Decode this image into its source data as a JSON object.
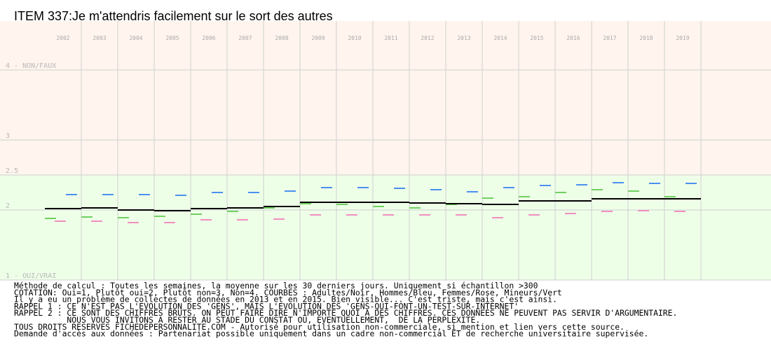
{
  "chart_data": {
    "type": "step-segments",
    "title": "ITEM 337:Je m'attendris facilement sur le sort des autres",
    "categories": [
      "2002",
      "2003",
      "2004",
      "2005",
      "2006",
      "2007",
      "2008",
      "2009",
      "2010",
      "2011",
      "2012",
      "2013",
      "2014",
      "2015",
      "2016",
      "2017",
      "2018",
      "2019"
    ],
    "series": [
      {
        "name": "Adultes",
        "color": "#000000",
        "values": [
          2.02,
          2.03,
          2.0,
          1.99,
          2.02,
          2.03,
          2.05,
          2.11,
          2.11,
          2.11,
          2.1,
          2.09,
          2.08,
          2.13,
          2.13,
          2.16,
          2.16,
          2.16
        ]
      },
      {
        "name": "Hommes",
        "color": "#4a90f0",
        "values": [
          2.22,
          2.22,
          2.22,
          2.21,
          2.25,
          2.25,
          2.27,
          2.32,
          2.32,
          2.31,
          2.29,
          2.26,
          2.32,
          2.35,
          2.36,
          2.39,
          2.38,
          2.38
        ]
      },
      {
        "name": "Femmes",
        "color": "#f08ec0",
        "values": [
          1.84,
          1.84,
          1.82,
          1.82,
          1.86,
          1.86,
          1.87,
          1.93,
          1.93,
          1.93,
          1.93,
          1.93,
          1.89,
          1.93,
          1.95,
          1.98,
          1.99,
          1.98
        ]
      },
      {
        "name": "Mineurs",
        "color": "#70d060",
        "values": [
          1.88,
          1.9,
          1.89,
          1.91,
          1.94,
          1.98,
          2.03,
          2.09,
          2.08,
          2.05,
          2.03,
          2.08,
          2.17,
          2.19,
          2.25,
          2.29,
          2.27,
          2.19
        ]
      }
    ],
    "ylim": [
      1,
      4.7
    ],
    "yticks": [
      {
        "value": 4,
        "label": "4 - NON/FAUX"
      },
      3,
      2.5,
      2,
      {
        "value": 1,
        "label": "1 - OUI/VRAI"
      }
    ],
    "grid": true,
    "notes": [
      "Méthode de calcul : Toutes les semaines, la moyenne sur les 30 derniers jours. Uniquement si échantillon >300",
      "COTATION: Oui=1, Plutôt oui=2, Plutôt non=3, Non=4. COURBES : Adultes/Noir, Hommes/Bleu, Femmes/Rose, Mineurs/Vert",
      "Il y a eu un problème de collectes de données en 2013 et en 2015. Bien visible... C'est triste, mais c'est ainsi.",
      "RAPPEL 1 : CE N'EST PAS L'EVOLUTION DES 'GENS', MAIS L'EVOLUTION DES 'GENS-QUI-FONT-UN-TEST-SUR-INTERNET'",
      "RAPPEL 2 : CE SONT DES CHIFFRES BRUTS. ON PEUT FAIRE DIRE N'IMPORTE QUOI A DES CHIFFRES. CES DONNEES NE PEUVENT PAS SERVIR D'ARGUMENTAIRE.",
      "           NOUS VOUS INVITONS A RESTER AU STADE DU CONSTAT OU, EVENTUELLEMENT,  DE LA PERPLEXITE.",
      "TOUS DROITS RESERVES FICHEDEPERSONNALITE.COM - Autorisé pour utilisation non-commerciale, si mention et lien vers cette source.",
      "Demande d'accès aux données : Partenariat possible uniquement dans un cadre non-commercial ET de recherche universitaire supervisée."
    ]
  }
}
